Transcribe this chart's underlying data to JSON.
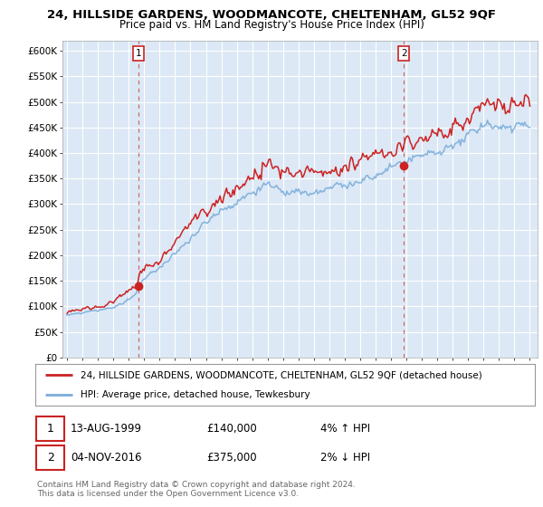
{
  "title": "24, HILLSIDE GARDENS, WOODMANCOTE, CHELTENHAM, GL52 9QF",
  "subtitle": "Price paid vs. HM Land Registry's House Price Index (HPI)",
  "ytick_labels": [
    "£0",
    "£50K",
    "£100K",
    "£150K",
    "£200K",
    "£250K",
    "£300K",
    "£350K",
    "£400K",
    "£450K",
    "£500K",
    "£550K",
    "£600K"
  ],
  "yticks": [
    0,
    50000,
    100000,
    150000,
    200000,
    250000,
    300000,
    350000,
    400000,
    450000,
    500000,
    550000,
    600000
  ],
  "legend_line1": "24, HILLSIDE GARDENS, WOODMANCOTE, CHELTENHAM, GL52 9QF (detached house)",
  "legend_line2": "HPI: Average price, detached house, Tewkesbury",
  "sale1_date": "13-AUG-1999",
  "sale1_price": "£140,000",
  "sale1_hpi": "4% ↑ HPI",
  "sale2_date": "04-NOV-2016",
  "sale2_price": "£375,000",
  "sale2_hpi": "2% ↓ HPI",
  "footer": "Contains HM Land Registry data © Crown copyright and database right 2024.\nThis data is licensed under the Open Government Licence v3.0.",
  "hpi_color": "#7aaddb",
  "price_color": "#cc2222",
  "bg_color": "#ffffff",
  "plot_bg_color": "#dce8f5",
  "grid_color": "#ffffff",
  "sale1_x_year": 1999.62,
  "sale1_y": 140000,
  "sale2_x_year": 2016.84,
  "sale2_y": 375000,
  "ylim": [
    0,
    620000
  ],
  "xlim_left": 1994.7,
  "xlim_right": 2025.5
}
